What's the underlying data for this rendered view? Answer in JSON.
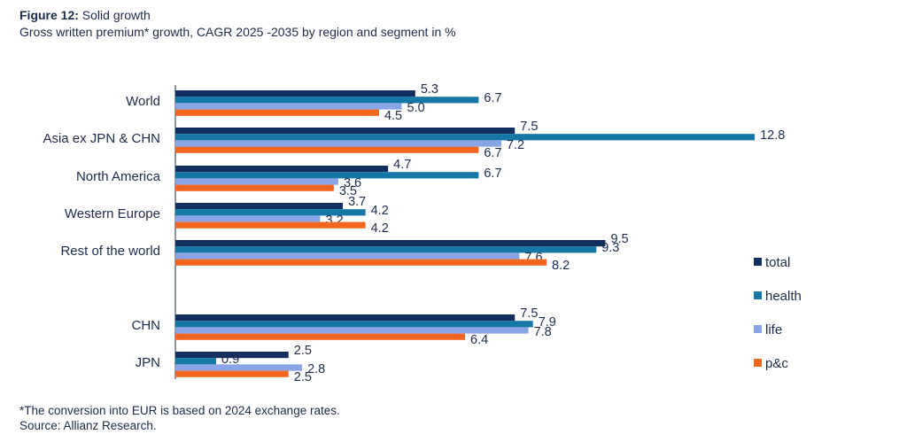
{
  "header": {
    "figure_label": "Figure 12:",
    "figure_title": "Solid growth",
    "subtitle": "Gross written premium* growth, CAGR 2025 -2035 by region and segment in %"
  },
  "footer": {
    "footnote": "*The conversion into EUR is based on 2024 exchange rates.",
    "source": "Source: Allianz Research."
  },
  "chart_data": {
    "type": "bar",
    "orientation": "horizontal",
    "title": "Gross written premium* growth, CAGR 2025 -2035 by region and segment in %",
    "categories": [
      "World",
      "Asia ex JPN & CHN",
      "North America",
      "Western Europe",
      "Rest of the world",
      "CHN",
      "JPN"
    ],
    "series": [
      {
        "name": "total",
        "color": "#12305f",
        "values": [
          5.3,
          7.5,
          4.7,
          3.7,
          9.5,
          7.5,
          2.5
        ]
      },
      {
        "name": "health",
        "color": "#1477a6",
        "values": [
          6.7,
          12.8,
          6.7,
          4.2,
          9.3,
          7.9,
          0.9
        ]
      },
      {
        "name": "life",
        "color": "#8aa5e6",
        "values": [
          5.0,
          7.2,
          3.6,
          3.2,
          7.6,
          7.8,
          2.8
        ]
      },
      {
        "name": "p&c",
        "color": "#f2661f",
        "values": [
          4.5,
          6.7,
          3.5,
          4.2,
          8.2,
          6.4,
          2.5
        ]
      }
    ],
    "xlim": [
      0,
      13
    ],
    "legend_position": "right",
    "grid": false
  }
}
